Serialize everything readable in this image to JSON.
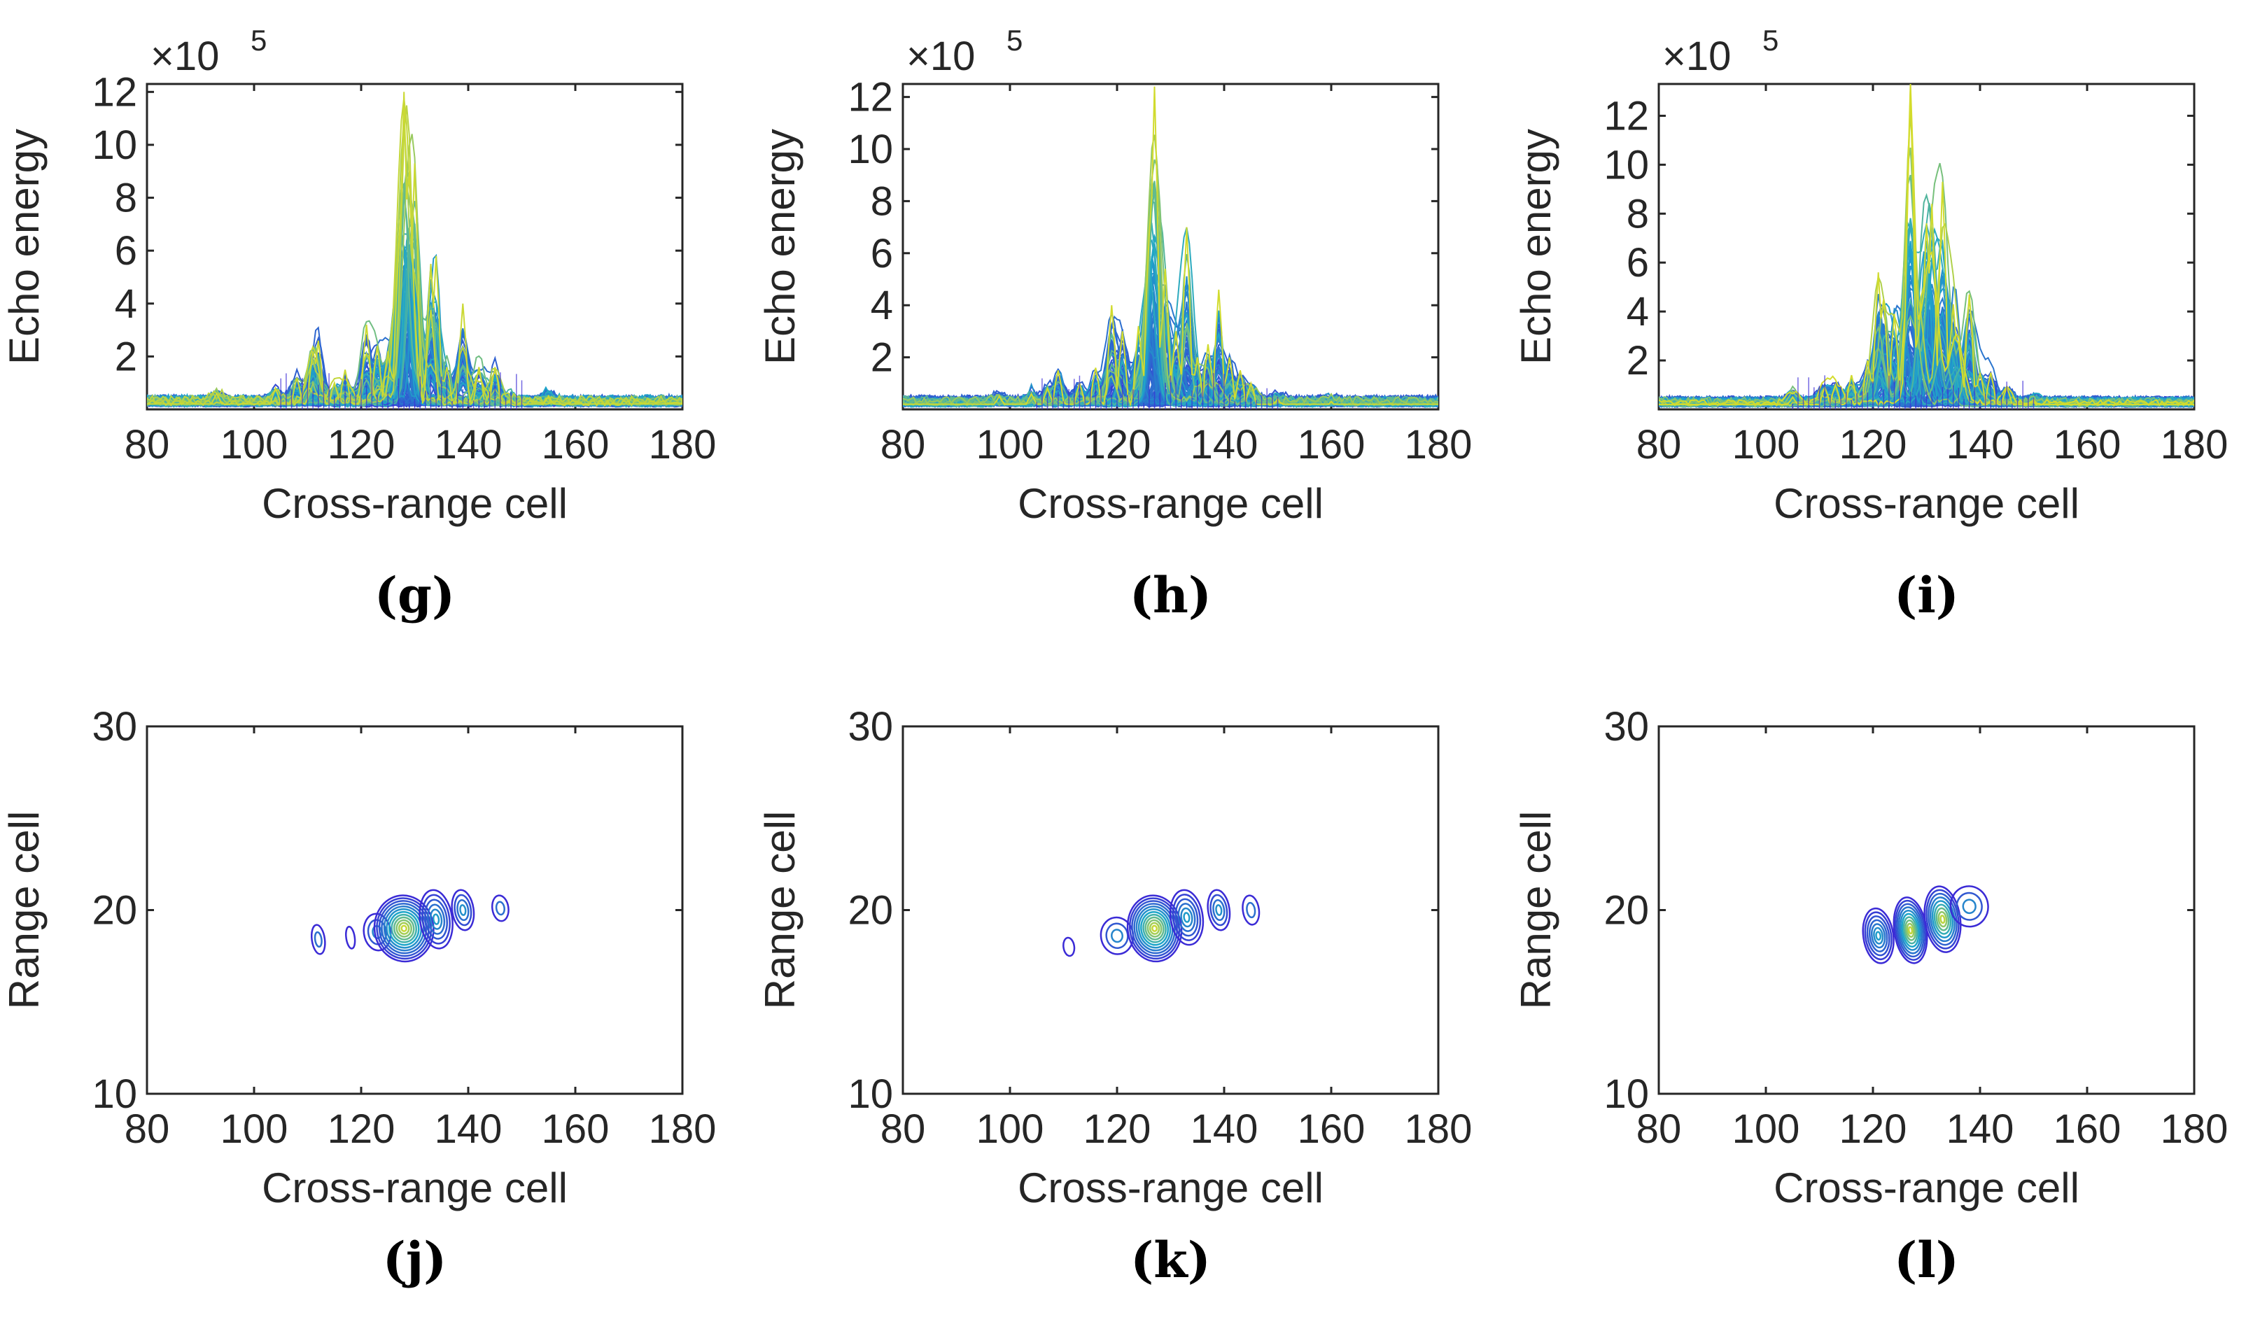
{
  "figure": {
    "colors": {
      "low": "#3b2bd6",
      "mid": "#1fa6c9",
      "high": "#e8e21a",
      "axis": "#262626"
    }
  },
  "chart_data": [
    {
      "id": "g",
      "panel_label": "(g)",
      "type": "line",
      "xlabel": "Cross-range cell",
      "ylabel": "Echo energy",
      "exponent_label": "×10",
      "exponent_power": "5",
      "xlim": [
        80,
        180
      ],
      "ylim": [
        0,
        12.3
      ],
      "xticks": [
        80,
        100,
        120,
        140,
        160,
        180
      ],
      "yticks": [
        2,
        4,
        6,
        8,
        10,
        12
      ],
      "peaks": [
        [
          93,
          0.6
        ],
        [
          104,
          0.8
        ],
        [
          108,
          1.2
        ],
        [
          111,
          2.2
        ],
        [
          112,
          2.6
        ],
        [
          115,
          1.0
        ],
        [
          117,
          1.5
        ],
        [
          121,
          3.2
        ],
        [
          123,
          2.4
        ],
        [
          125,
          2.2
        ],
        [
          127,
          6.0
        ],
        [
          128,
          12.0
        ],
        [
          129,
          9.0
        ],
        [
          130,
          9.3
        ],
        [
          133,
          5.5
        ],
        [
          134,
          5.8
        ],
        [
          136,
          1.6
        ],
        [
          139,
          4.0
        ],
        [
          142,
          1.6
        ],
        [
          145,
          1.6
        ],
        [
          148,
          0.4
        ],
        [
          155,
          0.5
        ]
      ]
    },
    {
      "id": "h",
      "panel_label": "(h)",
      "type": "line",
      "xlabel": "Cross-range cell",
      "ylabel": "Echo energy",
      "exponent_label": "×10",
      "exponent_power": "5",
      "xlim": [
        80,
        180
      ],
      "ylim": [
        0,
        12.5
      ],
      "xticks": [
        80,
        100,
        120,
        140,
        160,
        180
      ],
      "yticks": [
        2,
        4,
        6,
        8,
        10,
        12
      ],
      "peaks": [
        [
          98,
          0.5
        ],
        [
          104,
          0.6
        ],
        [
          107,
          0.8
        ],
        [
          109,
          1.5
        ],
        [
          113,
          1.0
        ],
        [
          116,
          1.6
        ],
        [
          119,
          4.0
        ],
        [
          121,
          3.0
        ],
        [
          124,
          3.2
        ],
        [
          126,
          6.7
        ],
        [
          127,
          12.4
        ],
        [
          129,
          5.4
        ],
        [
          131,
          3.0
        ],
        [
          133,
          7.0
        ],
        [
          135,
          2.0
        ],
        [
          137,
          2.5
        ],
        [
          139,
          4.6
        ],
        [
          141,
          2.0
        ],
        [
          143,
          1.5
        ],
        [
          145,
          1.0
        ],
        [
          150,
          0.4
        ],
        [
          160,
          0.3
        ]
      ]
    },
    {
      "id": "i",
      "panel_label": "(i)",
      "type": "line",
      "xlabel": "Cross-range cell",
      "ylabel": "Echo energy",
      "exponent_label": "×10",
      "exponent_power": "5",
      "xlim": [
        80,
        180
      ],
      "ylim": [
        0,
        13.3
      ],
      "xticks": [
        80,
        100,
        120,
        140,
        160,
        180
      ],
      "yticks": [
        2,
        4,
        6,
        8,
        10,
        12
      ],
      "peaks": [
        [
          105,
          0.5
        ],
        [
          111,
          0.9
        ],
        [
          113,
          1.0
        ],
        [
          116,
          1.4
        ],
        [
          119,
          2.0
        ],
        [
          121,
          5.6
        ],
        [
          122,
          4.5
        ],
        [
          124,
          3.9
        ],
        [
          126,
          4.0
        ],
        [
          127,
          13.2
        ],
        [
          129,
          4.6
        ],
        [
          130,
          7.6
        ],
        [
          131,
          8.4
        ],
        [
          133,
          9.3
        ],
        [
          135,
          4.3
        ],
        [
          136,
          2.7
        ],
        [
          138,
          4.7
        ],
        [
          140,
          1.5
        ],
        [
          142,
          1.5
        ],
        [
          145,
          0.9
        ],
        [
          150,
          0.4
        ]
      ]
    },
    {
      "id": "j",
      "panel_label": "(j)",
      "type": "contour",
      "xlabel": "Cross-range cell",
      "ylabel": "Range cell",
      "xlim": [
        80,
        180
      ],
      "ylim": [
        10,
        30
      ],
      "xticks": [
        80,
        100,
        120,
        140,
        160,
        180
      ],
      "yticks": [
        10,
        20,
        30
      ],
      "blobs": [
        [
          112,
          18.4,
          1.2,
          0.8,
          2
        ],
        [
          118,
          18.5,
          0.8,
          0.6,
          1
        ],
        [
          123,
          18.8,
          2.5,
          1.0,
          3
        ],
        [
          128,
          19.0,
          5.5,
          1.8,
          12
        ],
        [
          134,
          19.5,
          3.0,
          1.6,
          6
        ],
        [
          139,
          20.0,
          2.0,
          1.1,
          4
        ],
        [
          146,
          20.1,
          1.5,
          0.7,
          2
        ]
      ]
    },
    {
      "id": "k",
      "panel_label": "(k)",
      "type": "contour",
      "xlabel": "Cross-range cell",
      "ylabel": "Range cell",
      "xlim": [
        80,
        180
      ],
      "ylim": [
        10,
        30
      ],
      "xticks": [
        80,
        100,
        120,
        140,
        160,
        180
      ],
      "yticks": [
        10,
        20,
        30
      ],
      "blobs": [
        [
          111,
          18.0,
          1.0,
          0.5,
          1
        ],
        [
          120,
          18.6,
          3.0,
          1.0,
          3
        ],
        [
          127,
          19.0,
          5.0,
          1.8,
          12
        ],
        [
          133,
          19.6,
          3.0,
          1.5,
          6
        ],
        [
          139,
          20.0,
          2.0,
          1.1,
          4
        ],
        [
          145,
          20.0,
          1.5,
          0.8,
          2
        ]
      ]
    },
    {
      "id": "l",
      "panel_label": "(l)",
      "type": "contour",
      "xlabel": "Cross-range cell",
      "ylabel": "Range cell",
      "xlim": [
        80,
        180
      ],
      "ylim": [
        10,
        30
      ],
      "xticks": [
        80,
        100,
        120,
        140,
        160,
        180
      ],
      "yticks": [
        10,
        20,
        30
      ],
      "blobs": [
        [
          121,
          18.6,
          2.8,
          1.5,
          7
        ],
        [
          127,
          18.9,
          3.0,
          1.8,
          10
        ],
        [
          133,
          19.5,
          3.3,
          1.8,
          9
        ],
        [
          138,
          20.2,
          3.5,
          1.1,
          3
        ]
      ]
    }
  ]
}
